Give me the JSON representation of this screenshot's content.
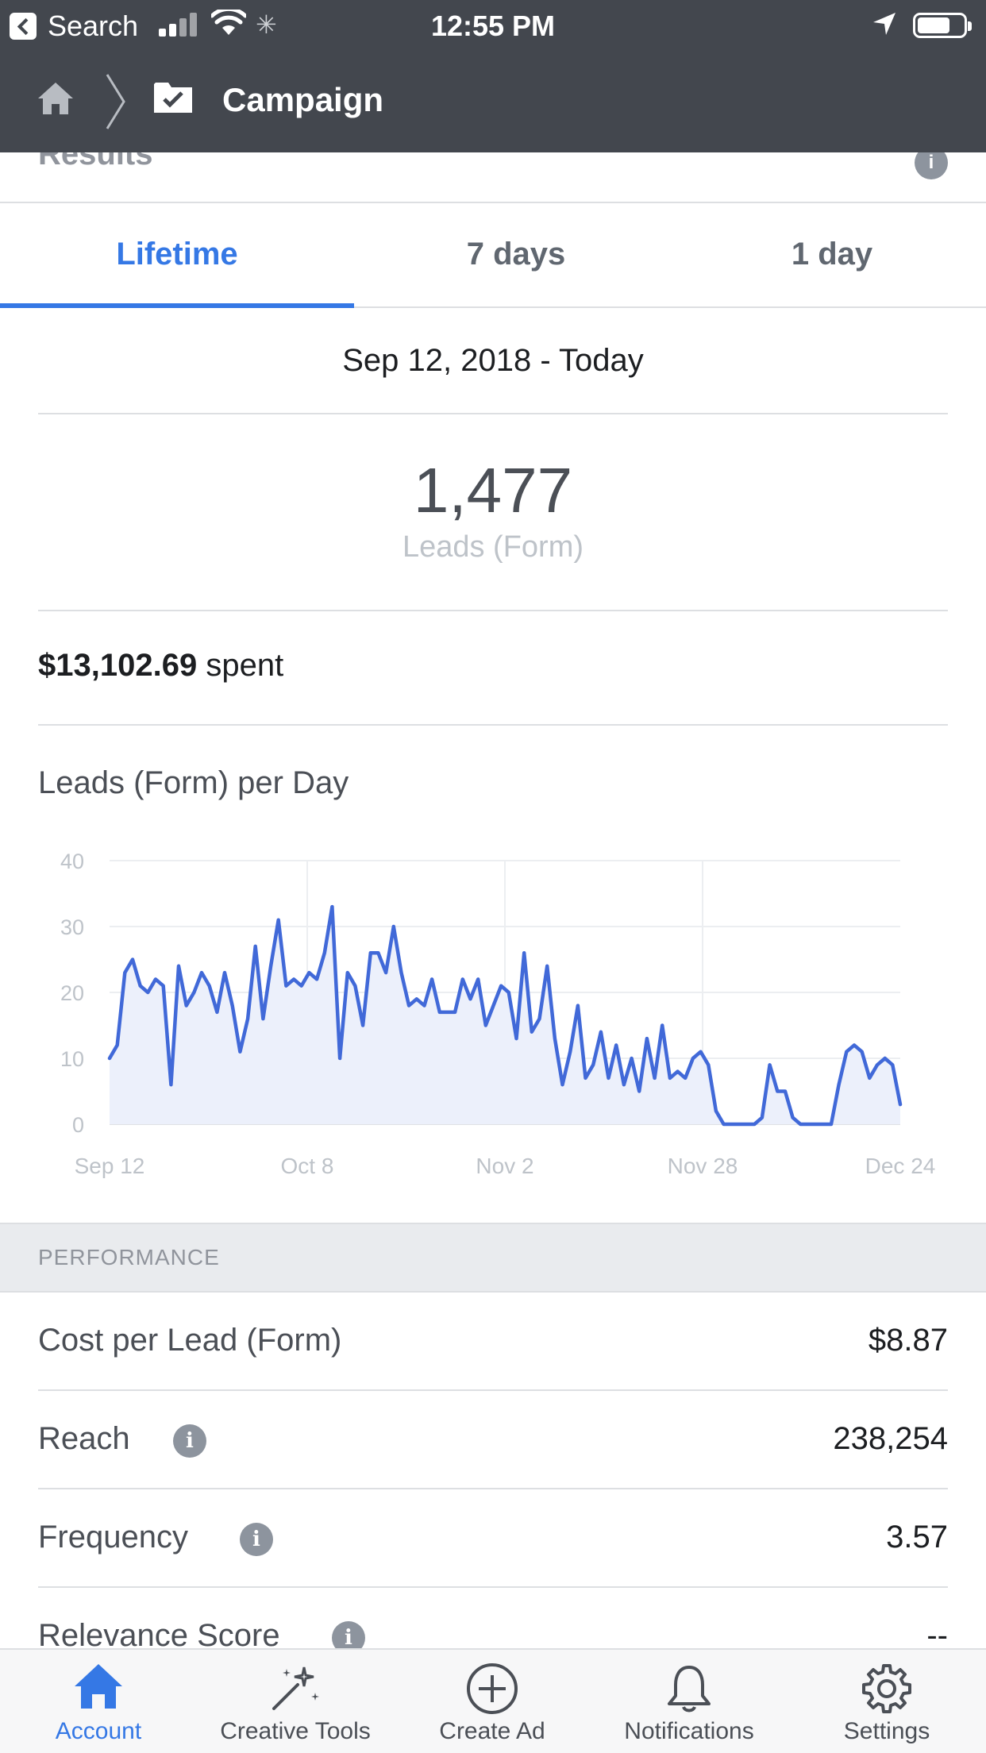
{
  "status_bar": {
    "back_app": "Search",
    "time": "12:55 PM"
  },
  "nav": {
    "title": "Campaign"
  },
  "results": {
    "label": "Results",
    "info": "i"
  },
  "tabs": [
    {
      "label": "Lifetime",
      "active": true
    },
    {
      "label": "7 days",
      "active": false
    },
    {
      "label": "1 day",
      "active": false
    }
  ],
  "date_range": "Sep 12, 2018 - Today",
  "summary": {
    "value": "1,477",
    "label": "Leads (Form)",
    "spent_amount": "$13,102.69",
    "spent_suffix": "spent"
  },
  "chart_title": "Leads (Form) per Day",
  "chart_data": {
    "type": "area",
    "title": "Leads (Form) per Day",
    "xlabel": "",
    "ylabel": "",
    "ylim": [
      0,
      40
    ],
    "yticks": [
      0,
      10,
      20,
      30,
      40
    ],
    "xtick_labels": [
      "Sep 12",
      "Oct 8",
      "Nov 2",
      "Nov 28",
      "Dec 24"
    ],
    "grid": true,
    "color": "#4169d8",
    "fill": "#ecf0fb",
    "series": [
      {
        "values": [
          10,
          12,
          23,
          25,
          21,
          20,
          22,
          21,
          6,
          24,
          18,
          20,
          23,
          21,
          17,
          23,
          18,
          11,
          16,
          27,
          16,
          24,
          31,
          21,
          22,
          21,
          23,
          22,
          26,
          33,
          10,
          23,
          21,
          15,
          26,
          26,
          23,
          30,
          23,
          18,
          19,
          18,
          22,
          17,
          17,
          17,
          22,
          19,
          22,
          15,
          18,
          21,
          20,
          13,
          26,
          14,
          16,
          24,
          13,
          6,
          11,
          18,
          7,
          9,
          14,
          7,
          12,
          6,
          10,
          5,
          13,
          7,
          15,
          7,
          8,
          7,
          10,
          11,
          9,
          2,
          0,
          0,
          0,
          0,
          0,
          1,
          9,
          5,
          5,
          1,
          0,
          0,
          0,
          0,
          0,
          6,
          11,
          12,
          11,
          7,
          9,
          10,
          9,
          3
        ]
      }
    ]
  },
  "performance": {
    "header": "PERFORMANCE",
    "rows": [
      {
        "label": "Cost per Lead (Form)",
        "value": "$8.87"
      },
      {
        "label": "Reach",
        "value": "238,254",
        "info": "i"
      },
      {
        "label": "Frequency",
        "value": "3.57",
        "info": "i"
      },
      {
        "label": "Relevance Score",
        "value": "--",
        "info": "i"
      }
    ]
  },
  "tabbar": [
    {
      "label": "Account",
      "icon": "home-icon",
      "active": true
    },
    {
      "label": "Creative Tools",
      "icon": "magic-wand-icon",
      "active": false
    },
    {
      "label": "Create Ad",
      "icon": "plus-circle-icon",
      "active": false
    },
    {
      "label": "Notifications",
      "icon": "bell-icon",
      "active": false
    },
    {
      "label": "Settings",
      "icon": "gear-icon",
      "active": false
    }
  ],
  "colors": {
    "accent": "#3578e5",
    "nav_bg": "#43474e",
    "chart_line": "#4169d8"
  }
}
